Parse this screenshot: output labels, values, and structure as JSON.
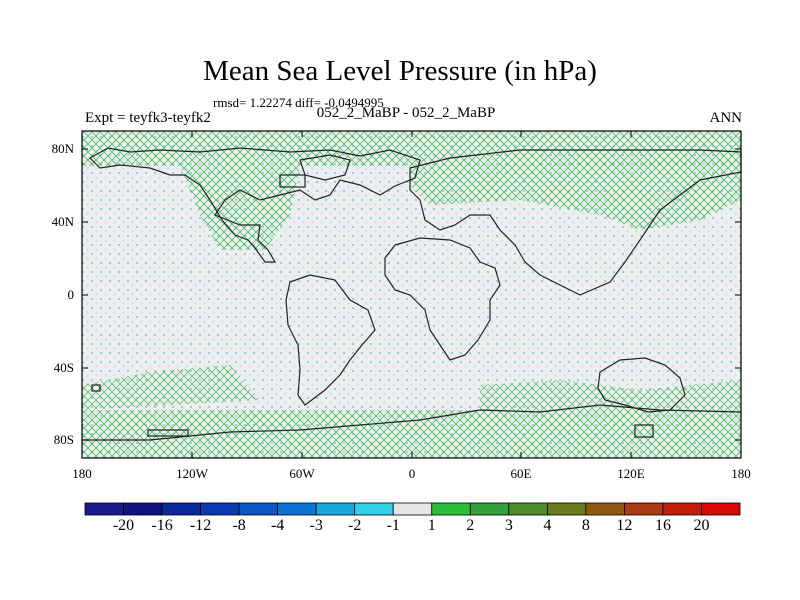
{
  "title": "Mean Sea Level Pressure (in hPa)",
  "stats": "rmsd= 1.22274  diff= -0.0494995",
  "left_label": "Expt = teyfk3-teyfk2",
  "center_label": "052_2_MaBP - 052_2_MaBP",
  "right_label": "ANN",
  "map": {
    "y_ticks": [
      "80N",
      "40N",
      "0",
      "40S",
      "80S"
    ],
    "x_ticks": [
      "180",
      "120W",
      "60W",
      "0",
      "60E",
      "120E",
      "180"
    ]
  },
  "colorbar": {
    "labels": [
      "-20",
      "-16",
      "-12",
      "-8",
      "-4",
      "-3",
      "-2",
      "-1",
      "1",
      "2",
      "3",
      "4",
      "8",
      "12",
      "16",
      "20"
    ],
    "colors": [
      "#1a1a8c",
      "#10147f",
      "#0a2a9c",
      "#0a3aaf",
      "#0b55c4",
      "#0b74d2",
      "#1aa7dd",
      "#30d0e5",
      "#e6e6e6",
      "#2cbe3a",
      "#36a13a",
      "#4f8c2a",
      "#6b7a1e",
      "#8c5a14",
      "#a83c10",
      "#c21e0c",
      "#d90808"
    ],
    "accent_negative": "#30b8e0",
    "accent_positive": "#2ab53a"
  }
}
